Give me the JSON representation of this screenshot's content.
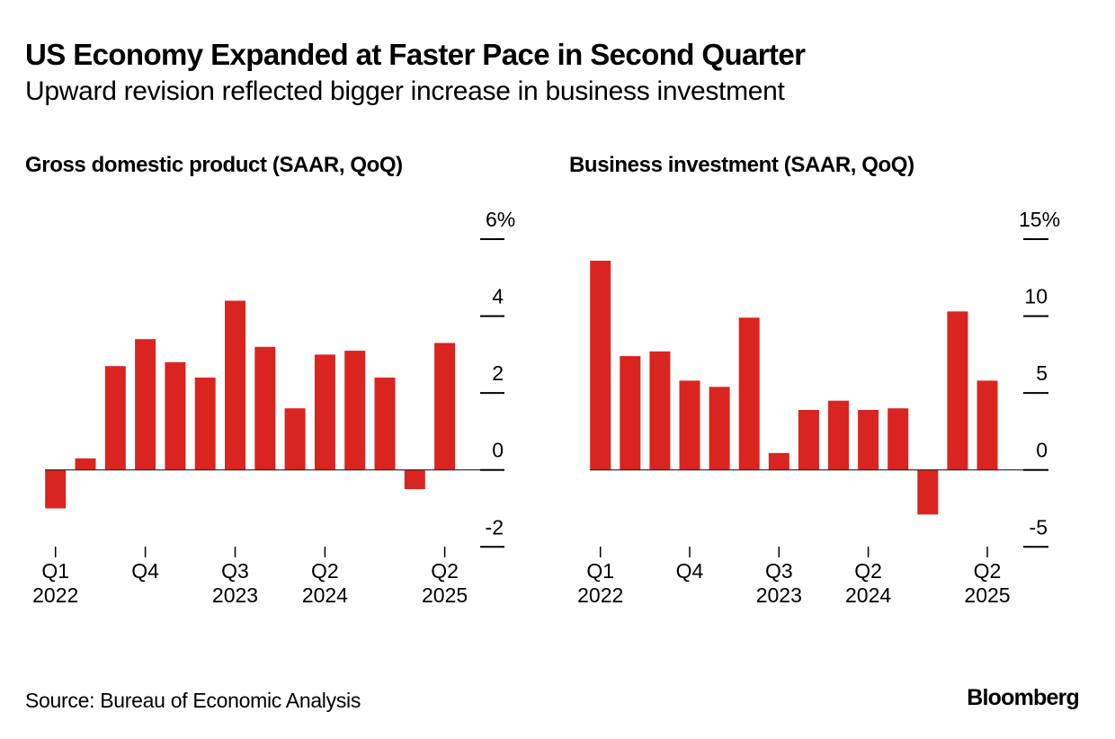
{
  "header": {
    "title": "US Economy Expanded at Faster Pace in Second Quarter",
    "subtitle": "Upward revision reflected bigger increase in business investment"
  },
  "footer": {
    "source": "Source: Bureau of Economic Analysis",
    "logo": "Bloomberg"
  },
  "colors": {
    "bar": "#DA2420",
    "axis": "#222222"
  },
  "chart_data": [
    {
      "type": "bar",
      "title": "Gross domestic product (SAAR, QoQ)",
      "xlabel": "",
      "ylabel": "",
      "unit": "%",
      "categories": [
        "Q1 2022",
        "Q2 2022",
        "Q3 2022",
        "Q4 2022",
        "Q1 2023",
        "Q2 2023",
        "Q3 2023",
        "Q4 2023",
        "Q1 2024",
        "Q2 2024",
        "Q3 2024",
        "Q4 2024",
        "Q1 2025",
        "Q2 2025"
      ],
      "values": [
        -1.0,
        0.3,
        2.7,
        3.4,
        2.8,
        2.4,
        4.4,
        3.2,
        1.6,
        3.0,
        3.1,
        2.4,
        -0.5,
        3.3
      ],
      "ylim": [
        -2,
        6
      ],
      "yticks": [
        6,
        4,
        2,
        0,
        -2
      ],
      "ytick_labels": [
        "6%",
        "4",
        "2",
        "0",
        "-2"
      ],
      "xticks": [
        {
          "index": 0,
          "line1": "Q1",
          "line2": "2022"
        },
        {
          "index": 3,
          "line1": "Q4",
          "line2": ""
        },
        {
          "index": 6,
          "line1": "Q3",
          "line2": "2023"
        },
        {
          "index": 9,
          "line1": "Q2",
          "line2": "2024"
        },
        {
          "index": 13,
          "line1": "Q2",
          "line2": "2025"
        }
      ],
      "grid": false,
      "yaxis_side": "right"
    },
    {
      "type": "bar",
      "title": "Business investment (SAAR, QoQ)",
      "xlabel": "",
      "ylabel": "",
      "unit": "%",
      "categories": [
        "Q1 2022",
        "Q2 2022",
        "Q3 2022",
        "Q4 2022",
        "Q1 2023",
        "Q2 2023",
        "Q3 2023",
        "Q4 2023",
        "Q1 2024",
        "Q2 2024",
        "Q3 2024",
        "Q4 2024",
        "Q1 2025",
        "Q2 2025"
      ],
      "values": [
        13.6,
        7.4,
        7.7,
        5.8,
        5.4,
        9.9,
        1.1,
        3.9,
        4.5,
        3.9,
        4.0,
        -2.9,
        10.3,
        5.8
      ],
      "ylim": [
        -5,
        15
      ],
      "yticks": [
        15,
        10,
        5,
        0,
        -5
      ],
      "ytick_labels": [
        "15%",
        "10",
        "5",
        "0",
        "-5"
      ],
      "xticks": [
        {
          "index": 0,
          "line1": "Q1",
          "line2": "2022"
        },
        {
          "index": 3,
          "line1": "Q4",
          "line2": ""
        },
        {
          "index": 6,
          "line1": "Q3",
          "line2": "2023"
        },
        {
          "index": 9,
          "line1": "Q2",
          "line2": "2024"
        },
        {
          "index": 13,
          "line1": "Q2",
          "line2": "2025"
        }
      ],
      "grid": false,
      "yaxis_side": "right"
    }
  ]
}
